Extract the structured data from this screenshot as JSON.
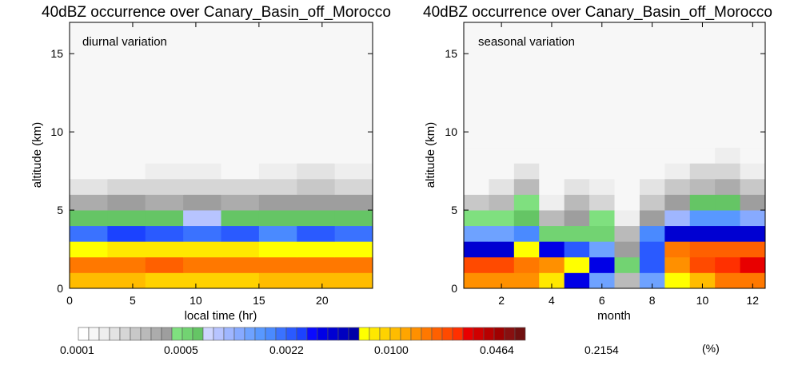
{
  "palette": [
    "#ffffff",
    "#f7f7f7",
    "#eeeeee",
    "#e3e3e3",
    "#d6d6d6",
    "#c8c8c8",
    "#bababa",
    "#acacac",
    "#9e9e9e",
    "#7fe07f",
    "#72d372",
    "#65c565",
    "#cfd6ff",
    "#b7c4ff",
    "#9fb6ff",
    "#87aaff",
    "#6ea2ff",
    "#5898ff",
    "#4a8aff",
    "#3a72ff",
    "#2a5aff",
    "#1b42ff",
    "#0a0aff",
    "#0000e6",
    "#0000d2",
    "#0000c0",
    "#0000a8",
    "#ffff00",
    "#ffe800",
    "#ffd200",
    "#ffbc00",
    "#ffa500",
    "#ff9000",
    "#ff7800",
    "#ff6000",
    "#ff4a00",
    "#ff3000",
    "#e80000",
    "#d00000",
    "#b80000",
    "#a00000",
    "#881010",
    "#701010"
  ],
  "chart_data": [
    {
      "type": "heatmap",
      "title": "40dBZ occurrence over Canary_Basin_off_Morocco",
      "annotation": "diurnal variation",
      "xlabel": "local time (hr)",
      "ylabel": "altitude (km)",
      "xlim": [
        0,
        24
      ],
      "ylim": [
        0,
        17
      ],
      "xticks": [
        0,
        5,
        10,
        15,
        20
      ],
      "yticks": [
        0,
        5,
        10,
        15
      ],
      "x_edges": [
        0,
        3,
        6,
        9,
        12,
        15,
        18,
        21,
        24
      ],
      "y_edges": [
        0,
        1,
        2,
        3,
        4,
        5,
        6,
        7,
        8,
        17
      ],
      "grid": [
        [
          30,
          30,
          29,
          29,
          29,
          30,
          30,
          30
        ],
        [
          33,
          33,
          34,
          33,
          33,
          33,
          33,
          33
        ],
        [
          27,
          28,
          28,
          28,
          28,
          27,
          27,
          27
        ],
        [
          19,
          21,
          20,
          19,
          20,
          18,
          20,
          19
        ],
        [
          11,
          11,
          11,
          13,
          11,
          11,
          11,
          11
        ],
        [
          7,
          8,
          7,
          8,
          7,
          8,
          8,
          8
        ],
        [
          3,
          4,
          4,
          4,
          4,
          4,
          5,
          4
        ],
        [
          1,
          1,
          2,
          2,
          1,
          2,
          3,
          2
        ],
        [
          1,
          1,
          1,
          1,
          1,
          1,
          1,
          1
        ]
      ]
    },
    {
      "type": "heatmap",
      "title": "40dBZ occurrence over Canary_Basin_off_Morocco",
      "annotation": "seasonal variation",
      "xlabel": "month",
      "ylabel": "altitude (km)",
      "xlim": [
        0.5,
        12.5
      ],
      "ylim": [
        0,
        17
      ],
      "xticks": [
        2,
        4,
        6,
        8,
        10,
        12
      ],
      "yticks": [
        0,
        5,
        10,
        15
      ],
      "x_edges": [
        0.5,
        1.5,
        2.5,
        3.5,
        4.5,
        5.5,
        6.5,
        7.5,
        8.5,
        9.5,
        10.5,
        11.5,
        12.5
      ],
      "y_edges": [
        0,
        1,
        2,
        3,
        4,
        5,
        6,
        7,
        8,
        9,
        17
      ],
      "grid": [
        [
          32,
          32,
          32,
          28,
          23,
          16,
          6,
          16,
          27,
          30,
          33,
          33
        ],
        [
          35,
          35,
          33,
          32,
          27,
          23,
          10,
          20,
          32,
          35,
          36,
          37
        ],
        [
          24,
          24,
          27,
          23,
          20,
          16,
          8,
          20,
          33,
          34,
          34,
          34
        ],
        [
          16,
          16,
          18,
          10,
          10,
          10,
          6,
          18,
          24,
          24,
          24,
          24
        ],
        [
          9,
          9,
          11,
          6,
          8,
          9,
          2,
          8,
          14,
          17,
          17,
          15
        ],
        [
          5,
          6,
          9,
          2,
          6,
          4,
          1,
          5,
          8,
          11,
          11,
          8
        ],
        [
          1,
          3,
          6,
          1,
          3,
          2,
          1,
          3,
          5,
          6,
          7,
          5
        ],
        [
          1,
          1,
          3,
          1,
          1,
          1,
          1,
          1,
          2,
          4,
          4,
          2
        ],
        [
          1,
          1,
          1,
          1,
          1,
          1,
          1,
          1,
          1,
          1,
          2,
          1
        ],
        [
          1,
          1,
          1,
          1,
          1,
          1,
          1,
          1,
          1,
          1,
          1,
          1
        ]
      ]
    }
  ],
  "colorbar": {
    "labels": [
      "0.0001",
      "0.0005",
      "0.0022",
      "0.0100",
      "0.0464",
      "0.2154"
    ],
    "unit": "(%)"
  }
}
